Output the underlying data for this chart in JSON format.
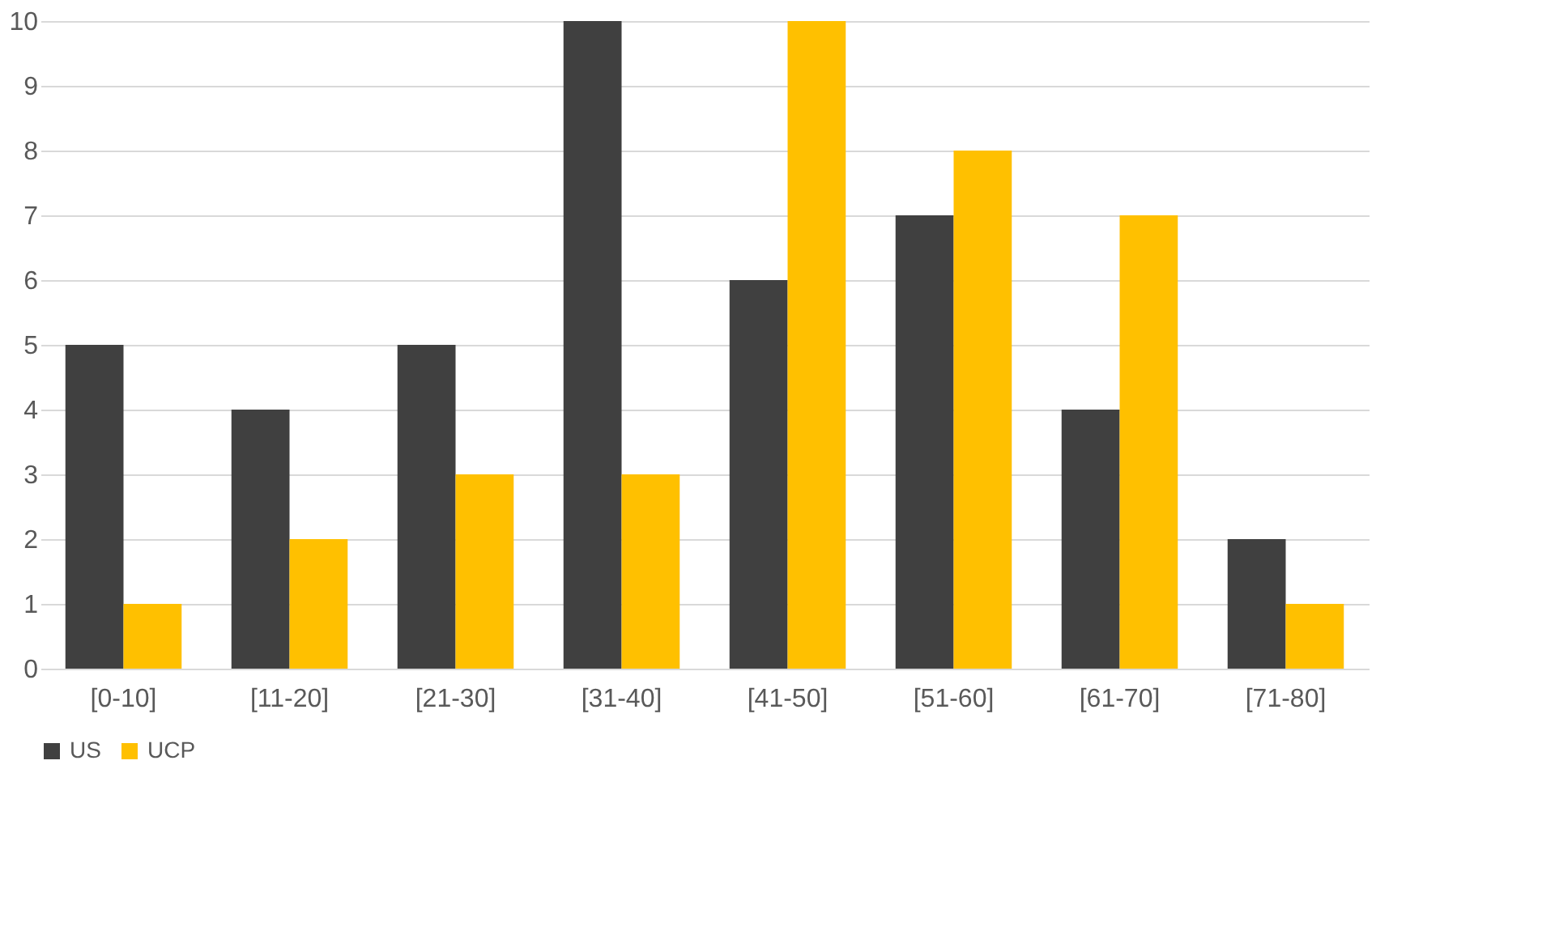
{
  "chart_data": {
    "type": "bar",
    "categories": [
      "[0-10]",
      "[11-20]",
      "[21-30]",
      "[31-40]",
      "[41-50]",
      "[51-60]",
      "[61-70]",
      "[71-80]"
    ],
    "series": [
      {
        "name": "US",
        "color": "#404040",
        "values": [
          5,
          4,
          5,
          10,
          6,
          7,
          4,
          2
        ]
      },
      {
        "name": "UCP",
        "color": "#ffc000",
        "values": [
          1,
          2,
          3,
          3,
          10,
          8,
          7,
          1
        ]
      }
    ],
    "ylim": [
      0,
      10
    ],
    "yticks": [
      0,
      1,
      2,
      3,
      4,
      5,
      6,
      7,
      8,
      9,
      10
    ],
    "grid": "y",
    "legend": "bottom"
  }
}
